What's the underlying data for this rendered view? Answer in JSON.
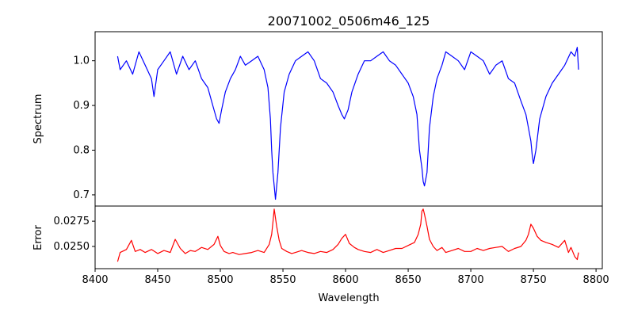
{
  "chart_data": [
    {
      "type": "line",
      "title": "20071002_0506m46_125",
      "xlabel": "",
      "ylabel": "Spectrum",
      "xlim": [
        8400,
        8805
      ],
      "ylim": [
        0.675,
        1.065
      ],
      "yticks": [
        0.7,
        0.8,
        0.9,
        1.0
      ],
      "yticklabels": [
        "0.7",
        "0.8",
        "0.9",
        "1.0"
      ],
      "grid": false,
      "color": "#0000ff",
      "series": [
        {
          "x": [
            8418,
            8420,
            8425,
            8430,
            8435,
            8440,
            8445,
            8447,
            8450,
            8455,
            8460,
            8465,
            8470,
            8475,
            8480,
            8485,
            8490,
            8494,
            8497,
            8499,
            8501,
            8504,
            8508,
            8512,
            8516,
            8520,
            8525,
            8530,
            8535,
            8538,
            8540,
            8541,
            8542,
            8543,
            8544,
            8546,
            8548,
            8551,
            8555,
            8560,
            8565,
            8570,
            8575,
            8580,
            8585,
            8590,
            8594,
            8597,
            8599,
            8602,
            8605,
            8610,
            8615,
            8620,
            8625,
            8630,
            8635,
            8640,
            8645,
            8650,
            8654,
            8657,
            8659,
            8661,
            8662,
            8663,
            8665,
            8667,
            8670,
            8673,
            8677,
            8680,
            8685,
            8690,
            8695,
            8700,
            8705,
            8710,
            8715,
            8720,
            8725,
            8730,
            8735,
            8740,
            8744,
            8746,
            8748,
            8749,
            8750,
            8752,
            8755,
            8760,
            8765,
            8770,
            8775,
            8780,
            8783,
            8785,
            8786
          ],
          "y": [
            1.01,
            0.98,
            1.0,
            0.97,
            1.02,
            0.99,
            0.96,
            0.92,
            0.98,
            1.0,
            1.02,
            0.97,
            1.01,
            0.98,
            1.0,
            0.96,
            0.94,
            0.9,
            0.87,
            0.86,
            0.89,
            0.93,
            0.96,
            0.98,
            1.01,
            0.99,
            1.0,
            1.01,
            0.98,
            0.94,
            0.87,
            0.8,
            0.75,
            0.72,
            0.69,
            0.75,
            0.85,
            0.93,
            0.97,
            1.0,
            1.01,
            1.02,
            1.0,
            0.96,
            0.95,
            0.93,
            0.9,
            0.88,
            0.87,
            0.89,
            0.93,
            0.97,
            1.0,
            1.0,
            1.01,
            1.02,
            1.0,
            0.99,
            0.97,
            0.95,
            0.92,
            0.88,
            0.8,
            0.76,
            0.73,
            0.72,
            0.75,
            0.85,
            0.92,
            0.96,
            0.99,
            1.02,
            1.01,
            1.0,
            0.98,
            1.02,
            1.01,
            1.0,
            0.97,
            0.99,
            1.0,
            0.96,
            0.95,
            0.91,
            0.88,
            0.85,
            0.82,
            0.79,
            0.77,
            0.8,
            0.87,
            0.92,
            0.95,
            0.97,
            0.99,
            1.02,
            1.01,
            1.03,
            0.98
          ]
        }
      ]
    },
    {
      "type": "line",
      "title": "",
      "xlabel": "Wavelength",
      "ylabel": "Error",
      "xlim": [
        8400,
        8805
      ],
      "ylim": [
        0.0228,
        0.029
      ],
      "xticks": [
        8400,
        8450,
        8500,
        8550,
        8600,
        8650,
        8700,
        8750,
        8800
      ],
      "xticklabels": [
        "8400",
        "8450",
        "8500",
        "8550",
        "8600",
        "8650",
        "8700",
        "8750",
        "8800"
      ],
      "yticks": [
        0.025,
        0.0275
      ],
      "yticklabels": [
        "0.0250",
        "0.0275"
      ],
      "grid": false,
      "color": "#ff0000",
      "series": [
        {
          "x": [
            8418,
            8420,
            8425,
            8429,
            8432,
            8436,
            8440,
            8445,
            8450,
            8455,
            8460,
            8464,
            8468,
            8472,
            8476,
            8480,
            8485,
            8490,
            8495,
            8498,
            8500,
            8503,
            8507,
            8510,
            8515,
            8520,
            8525,
            8530,
            8535,
            8539,
            8541,
            8542,
            8543,
            8545,
            8547,
            8549,
            8553,
            8557,
            8560,
            8565,
            8570,
            8575,
            8580,
            8585,
            8590,
            8594,
            8597,
            8600,
            8603,
            8607,
            8610,
            8615,
            8620,
            8625,
            8630,
            8635,
            8640,
            8645,
            8650,
            8655,
            8658,
            8660,
            8661,
            8662,
            8663,
            8665,
            8667,
            8670,
            8673,
            8677,
            8680,
            8685,
            8690,
            8695,
            8700,
            8705,
            8710,
            8715,
            8720,
            8725,
            8730,
            8735,
            8740,
            8744,
            8746,
            8748,
            8750,
            8753,
            8756,
            8760,
            8765,
            8770,
            8775,
            8778,
            8780,
            8783,
            8785,
            8786
          ],
          "y": [
            0.0235,
            0.0244,
            0.0247,
            0.0256,
            0.0245,
            0.0247,
            0.0244,
            0.0247,
            0.0243,
            0.0246,
            0.0244,
            0.0257,
            0.0248,
            0.0243,
            0.0246,
            0.0245,
            0.0249,
            0.0247,
            0.0252,
            0.026,
            0.0251,
            0.0245,
            0.0243,
            0.0244,
            0.0242,
            0.0243,
            0.0244,
            0.0246,
            0.0244,
            0.0252,
            0.0262,
            0.0274,
            0.0287,
            0.027,
            0.0256,
            0.0248,
            0.0245,
            0.0243,
            0.0244,
            0.0246,
            0.0244,
            0.0243,
            0.0245,
            0.0244,
            0.0247,
            0.0252,
            0.0258,
            0.0262,
            0.0253,
            0.0249,
            0.0247,
            0.0245,
            0.0244,
            0.0247,
            0.0244,
            0.0246,
            0.0248,
            0.0248,
            0.0251,
            0.0254,
            0.0262,
            0.0272,
            0.0285,
            0.0287,
            0.0282,
            0.027,
            0.0257,
            0.025,
            0.0246,
            0.0249,
            0.0244,
            0.0246,
            0.0248,
            0.0245,
            0.0245,
            0.0248,
            0.0246,
            0.0248,
            0.0249,
            0.025,
            0.0245,
            0.0248,
            0.025,
            0.0256,
            0.0262,
            0.0272,
            0.0268,
            0.026,
            0.0256,
            0.0254,
            0.0252,
            0.0249,
            0.0256,
            0.0244,
            0.0249,
            0.024,
            0.0237,
            0.0244
          ]
        }
      ]
    }
  ]
}
